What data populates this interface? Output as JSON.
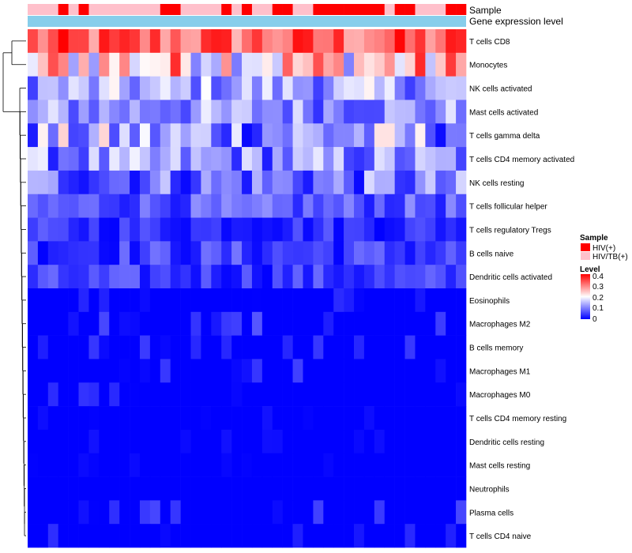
{
  "chart_data": {
    "type": "heatmap",
    "title": "",
    "column_count": 43,
    "annotation_tracks": [
      "Sample",
      "Gene expression level"
    ],
    "sample_groups": [
      "HIV(+)",
      "HIV/TB(+)"
    ],
    "sample_annotation": [
      1,
      1,
      1,
      0,
      1,
      0,
      1,
      1,
      1,
      1,
      1,
      1,
      1,
      0,
      0,
      1,
      1,
      1,
      1,
      0,
      1,
      0,
      1,
      1,
      0,
      0,
      1,
      1,
      0,
      0,
      0,
      0,
      0,
      0,
      0,
      1,
      0,
      0,
      1,
      1,
      1,
      0,
      0
    ],
    "sample_colors": {
      "HIV(+)": "#ff0000",
      "HIV/TB(+)": "#ffc0cb"
    },
    "gene_expression_color": "#87ceeb",
    "rows": [
      "T cells CD8",
      "Monocytes",
      "NK cells activated",
      "Mast cells activated",
      "T cells gamma delta",
      "T cells CD4 memory activated",
      "NK cells resting",
      "T cells follicular helper",
      "T cells regulatory  Tregs",
      "B cells naive",
      "Dendritic cells activated",
      "Eosinophils",
      "Macrophages M2",
      "B cells memory",
      "Macrophages M1",
      "Macrophages M0",
      "T cells CD4 memory resting",
      "Dendritic cells resting",
      "Mast cells resting",
      "Neutrophils",
      "Plasma cells",
      "T cells CD4 naive"
    ],
    "row_value_ranges": [
      [
        0.25,
        0.42
      ],
      [
        0.1,
        0.4
      ],
      [
        0.05,
        0.22
      ],
      [
        0.04,
        0.2
      ],
      [
        0.0,
        0.25
      ],
      [
        0.02,
        0.2
      ],
      [
        0.0,
        0.18
      ],
      [
        0.02,
        0.12
      ],
      [
        0.0,
        0.08
      ],
      [
        0.0,
        0.1
      ],
      [
        0.0,
        0.09
      ],
      [
        0.0,
        0.06
      ],
      [
        0.0,
        0.07
      ],
      [
        0.0,
        0.05
      ],
      [
        0.0,
        0.06
      ],
      [
        0.0,
        0.05
      ],
      [
        0.0,
        0.02
      ],
      [
        0.0,
        0.03
      ],
      [
        0.0,
        0.01
      ],
      [
        0.0,
        0.0
      ],
      [
        0.0,
        0.06
      ],
      [
        0.0,
        0.04
      ]
    ],
    "row_dendrogram": "present",
    "legend": {
      "sample_title": "Sample",
      "sample_labels": [
        "HIV(+)",
        "HIV/TB(+)"
      ],
      "level_title": "Level",
      "level_ticks": [
        "0.4",
        "0.3",
        "0.2",
        "0.1",
        "0"
      ],
      "level_range": [
        0,
        0.42
      ],
      "colormap": [
        "#0000ff",
        "#ffffff",
        "#ff0000"
      ]
    }
  }
}
